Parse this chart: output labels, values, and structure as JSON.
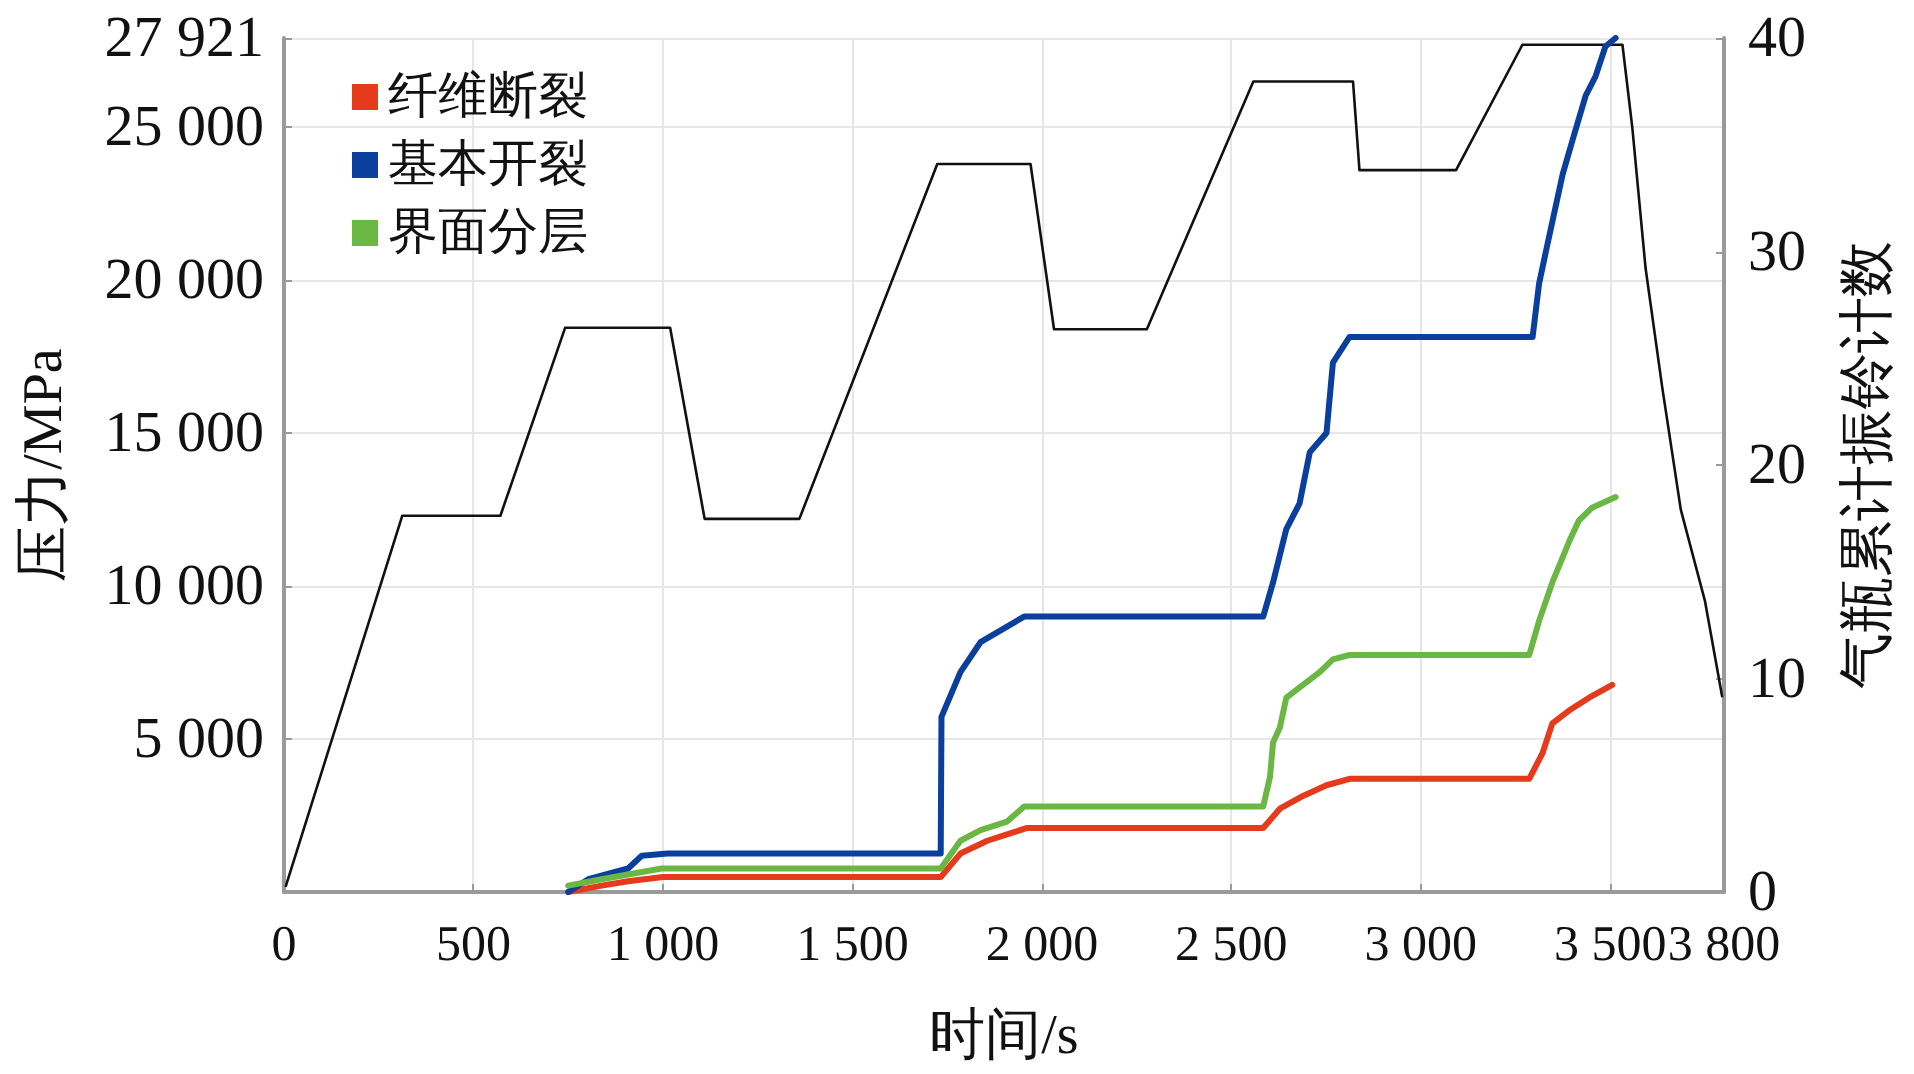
{
  "chart_data": {
    "type": "line",
    "xlabel": "时间/s",
    "ylabel": "压力/MPa",
    "y2label": "气瓶累计振铃计数",
    "xlim": [
      0,
      3800
    ],
    "xticks": [
      0,
      500,
      {
        "value": 1000,
        "label": "1 000"
      },
      {
        "value": 1500,
        "label": "1 500"
      },
      {
        "value": 2000,
        "label": "2 000"
      },
      {
        "value": 2500,
        "label": "2 500"
      },
      {
        "value": 3000,
        "label": "3 000"
      },
      {
        "value": 3500,
        "label": "3 500"
      },
      {
        "value": 3800,
        "label": "3 800"
      }
    ],
    "ylim": [
      0,
      27921
    ],
    "yticks": [
      {
        "value": 5000,
        "label": "5 000"
      },
      {
        "value": 10000,
        "label": "10 000"
      },
      {
        "value": 15000,
        "label": "15 000"
      },
      {
        "value": 20000,
        "label": "20 000"
      },
      {
        "value": 25000,
        "label": "25 000"
      },
      {
        "value": 27921,
        "label": "27 921"
      }
    ],
    "y2lim": [
      0,
      40
    ],
    "y2ticks": [
      0,
      10,
      20,
      30,
      40
    ],
    "grid": true,
    "legend": "top left",
    "series": [
      {
        "color": "#111111",
        "x": [
          5,
          312,
          571,
          742,
          1019,
          1110,
          1360,
          1724,
          1970,
          2032,
          2277,
          2558,
          2821,
          2838,
          3093,
          3268,
          3532,
          3558,
          3593,
          3637,
          3686,
          3750,
          3795
        ],
        "values": [
          200,
          12300,
          12300,
          18450,
          18450,
          12200,
          12200,
          23800,
          23800,
          18400,
          18400,
          26500,
          26500,
          23600,
          23600,
          27700,
          27700,
          25000,
          20400,
          16500,
          12500,
          9500,
          6400
        ]
      },
      {
        "name": "纤维断裂",
        "color": "#e53a1c",
        "axis": "y2",
        "x": [
          750,
          838,
          908,
          1000,
          1733,
          1785,
          1856,
          1908,
          1961,
          2584,
          2628,
          2689,
          2751,
          2812,
          3286,
          3321,
          3347,
          3391,
          3444,
          3505
        ],
        "values": [
          0,
          0.3,
          0.5,
          0.7,
          0.7,
          1.8,
          2.4,
          2.7,
          3.0,
          3.0,
          3.9,
          4.5,
          5.0,
          5.3,
          5.3,
          6.5,
          7.9,
          8.5,
          9.1,
          9.7
        ]
      },
      {
        "name": "基本开裂",
        "color": "#0b3f9e",
        "axis": "y2",
        "x": [
          750,
          803,
          908,
          944,
          1012,
          1733,
          1735,
          1785,
          1838,
          1953,
          2584,
          2610,
          2645,
          2680,
          2707,
          2751,
          2768,
          2812,
          3295,
          3312,
          3330,
          3374,
          3400,
          3435,
          3461,
          3487,
          3514
        ],
        "values": [
          0,
          0.6,
          1.1,
          1.7,
          1.8,
          1.8,
          8.2,
          10.3,
          11.7,
          12.9,
          12.9,
          14.5,
          17.0,
          18.2,
          20.6,
          21.5,
          24.8,
          26.0,
          26.0,
          28.5,
          30.0,
          33.6,
          35.2,
          37.3,
          38.2,
          39.6,
          40
        ]
      },
      {
        "name": "界面分层",
        "color": "#6ab843",
        "axis": "y2",
        "x": [
          750,
          838,
          996,
          1733,
          1785,
          1838,
          1908,
          1953,
          2584,
          2602,
          2610,
          2628,
          2645,
          2689,
          2733,
          2768,
          2812,
          3286,
          3312,
          3347,
          3391,
          3417,
          3452,
          3514
        ],
        "values": [
          0.3,
          0.6,
          1.1,
          1.1,
          2.4,
          2.9,
          3.3,
          4.0,
          4.0,
          5.4,
          7.0,
          7.7,
          9.1,
          9.7,
          10.3,
          10.9,
          11.1,
          11.1,
          12.7,
          14.5,
          16.4,
          17.4,
          18.0,
          18.5
        ]
      }
    ]
  }
}
